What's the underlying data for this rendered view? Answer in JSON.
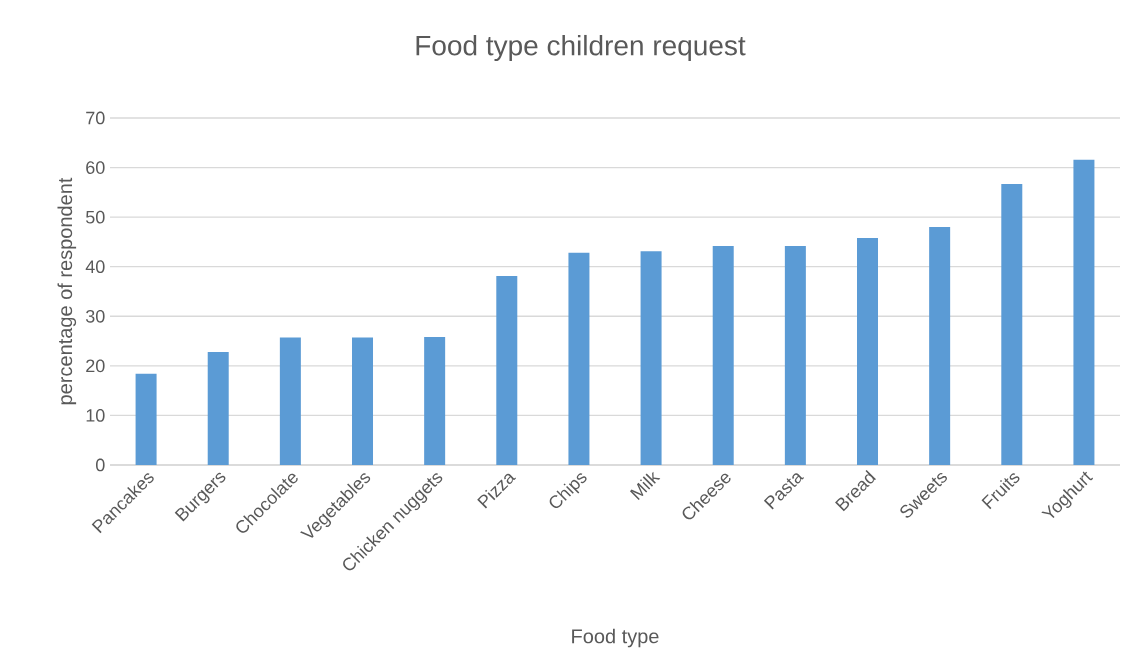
{
  "chart_data": {
    "type": "bar",
    "title": "Food type children request",
    "xlabel": "Food type",
    "ylabel": "percentage of respondent",
    "categories": [
      "Pancakes",
      "Burgers",
      "Chocolate",
      "Vegetables",
      "Chicken nuggets",
      "Pizza",
      "Chips",
      "Milk",
      "Cheese",
      "Pasta",
      "Bread",
      "Sweets",
      "Fruits",
      "Yoghurt"
    ],
    "values": [
      18.4,
      22.8,
      25.7,
      25.7,
      25.8,
      38.1,
      42.8,
      43.1,
      44.2,
      44.2,
      45.8,
      48.0,
      56.7,
      61.6
    ],
    "color": "#5b9bd5",
    "ylim": [
      0,
      70
    ],
    "yticks": [
      0,
      10,
      20,
      30,
      40,
      50,
      60,
      70
    ],
    "grid": "y"
  }
}
